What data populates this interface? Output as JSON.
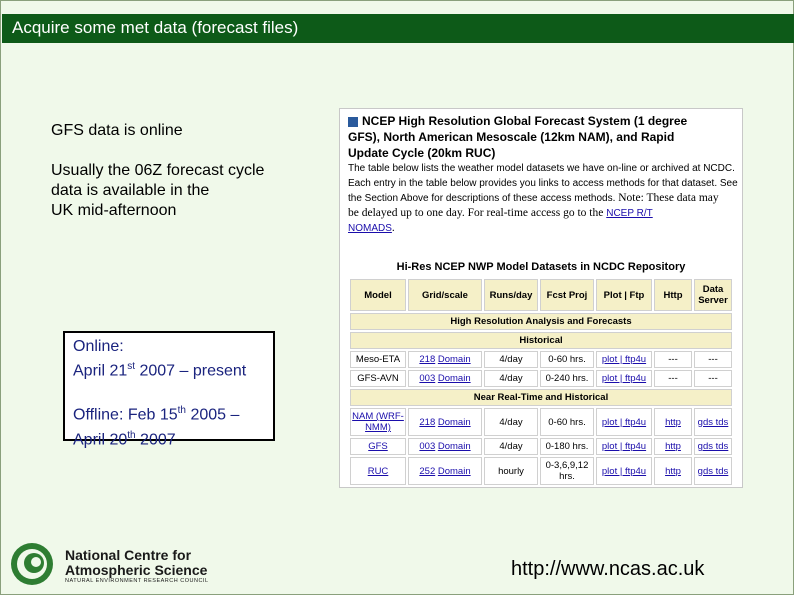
{
  "slide_title": "Acquire some met data (forecast files)",
  "left_text": {
    "line1": "GFS data is online",
    "para2": [
      "Usually the 06Z forecast cycle",
      "data is available in the",
      "UK mid-afternoon"
    ]
  },
  "online_box": {
    "online_label": "Online:",
    "online_month": "April 21",
    "online_sup": "st",
    "online_rest": " 2007 – present",
    "offline_prefix": "Offline: Feb 15",
    "offline_sup": "th",
    "offline_rest": " 2005 –",
    "offline_line2_prefix": "April 20",
    "offline_line2_sup": "th",
    "offline_line2_rest": " 2007"
  },
  "screenshot": {
    "header": [
      "NCEP High Resolution Global Forecast System (1 degree",
      "GFS), North American Mesoscale (12km NAM), and Rapid",
      "Update Cycle (20km RUC)"
    ],
    "desc_lines": [
      "The table below lists the weather model datasets we have on-line or archived at NCDC.",
      "Each entry in the table below provides you links to access methods for that dataset. See",
      "the Section Above for descriptions of these access methods."
    ],
    "note_text": " Note: These data may",
    "note_line2": "be delayed up to one day. For real-time access go to the ",
    "note_link1": "NCEP R/T",
    "note_link2": "NOMADS",
    "note_end": ".",
    "table_title": "Hi-Res NCEP NWP Model Datasets in NCDC Repository",
    "columns": [
      "Model",
      "Grid/scale",
      "Runs/day",
      "Fcst Proj",
      "Plot | Ftp",
      "Http",
      "Data Server"
    ],
    "section1": "High Resolution Analysis and Forecasts",
    "section2": "Historical",
    "section3": "Near Real-Time and Historical",
    "rows_hist": [
      {
        "model": "Meso-ETA",
        "grid_num": "218",
        "grid_link": "Domain",
        "runs": "4/day",
        "fcst": "0-60 hrs.",
        "plot": "plot | ftp4u",
        "http": "---",
        "server": "---"
      },
      {
        "model": "GFS-AVN",
        "grid_num": "003",
        "grid_link": "Domain",
        "runs": "4/day",
        "fcst": "0-240 hrs.",
        "plot": "plot | ftp4u",
        "http": "---",
        "server": "---"
      }
    ],
    "rows_nrt": [
      {
        "model": "NAM (WRF-NMM)",
        "grid_num": "218",
        "grid_link": "Domain",
        "runs": "4/day",
        "fcst": "0-60 hrs.",
        "plot": "plot | ftp4u",
        "http": "http",
        "server": "gds tds"
      },
      {
        "model": "GFS",
        "grid_num": "003",
        "grid_link": "Domain",
        "runs": "4/day",
        "fcst": "0-180 hrs.",
        "plot": "plot | ftp4u",
        "http": "http",
        "server": "gds tds"
      },
      {
        "model": "RUC",
        "grid_num": "252",
        "grid_link": "Domain",
        "runs": "hourly",
        "fcst": "0-3,6,9,12 hrs.",
        "plot": "plot | ftp4u",
        "http": "http",
        "server": "gds tds"
      }
    ]
  },
  "logo": {
    "name_line1": "National Centre for",
    "name_line2": "Atmospheric Science",
    "sub": "NATURAL ENVIRONMENT RESEARCH COUNCIL",
    "brand_color": "#2e7d32"
  },
  "url": "http://www.ncas.ac.uk"
}
